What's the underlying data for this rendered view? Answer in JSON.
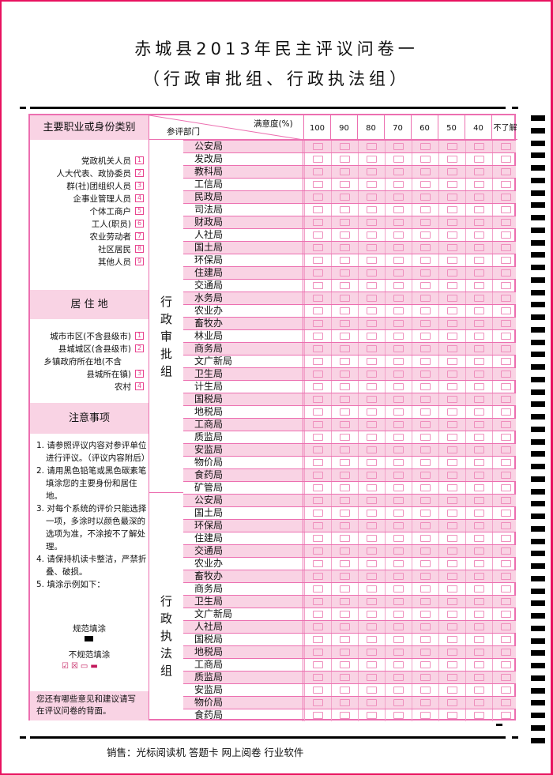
{
  "title": "赤城县2013年民主评议问卷一",
  "subtitle": "（行政审批组、行政执法组）",
  "occupation": {
    "heading": "主要职业或身份类别",
    "items": [
      {
        "label": "党政机关人员",
        "code": "1"
      },
      {
        "label": "人大代表、政协委员",
        "code": "2"
      },
      {
        "label": "群(社)团组织人员",
        "code": "3"
      },
      {
        "label": "企事业管理人员",
        "code": "4"
      },
      {
        "label": "个体工商户",
        "code": "5"
      },
      {
        "label": "工人(职员)",
        "code": "6"
      },
      {
        "label": "农业劳动者",
        "code": "7"
      },
      {
        "label": "社区居民",
        "code": "8"
      },
      {
        "label": "其他人员",
        "code": "9"
      }
    ]
  },
  "residence": {
    "heading": "居 住 地",
    "items": [
      {
        "label": "城市市区(不含县级市)",
        "code": "1"
      },
      {
        "label": "县城城区(含县级市)",
        "code": "2"
      },
      {
        "label": "乡镇政府所在地(不含",
        "code": ""
      },
      {
        "label": "县城所在镇)",
        "code": "3"
      },
      {
        "label": "农村",
        "code": "4"
      }
    ]
  },
  "notes": {
    "heading": "注意事项",
    "items": [
      "1. 请参照评议内容对参评单位进行评议。（评议内容附后）",
      "2. 请用黑色铅笔或黑色碳素笔填涂您的主要身份和居住地。",
      "3. 对每个系统的评价只能选择一项，多涂时以颜色最深的选项为准，不涂按不了解处理。",
      "4. 请保持机读卡整洁，严禁折叠、破损。",
      "5. 填涂示例如下："
    ],
    "correct_label": "规范填涂",
    "incorrect_label": "不规范填涂",
    "back_note": "您还有哪些意见和建议请写在评议问卷的背面。"
  },
  "table": {
    "corner_top": "满意度(%)",
    "corner_bottom": "参评部门",
    "columns": [
      "100",
      "90",
      "80",
      "70",
      "60",
      "50",
      "40",
      "不了解"
    ],
    "groups": [
      {
        "name": "行政审批组",
        "departments": [
          "公安局",
          "发改局",
          "教科局",
          "工信局",
          "民政局",
          "司法局",
          "财政局",
          "人社局",
          "国土局",
          "环保局",
          "住建局",
          "交通局",
          "水务局",
          "农业办",
          "畜牧办",
          "林业局",
          "商务局",
          "文广新局",
          "卫生局",
          "计生局",
          "国税局",
          "地税局",
          "工商局",
          "质监局",
          "安监局",
          "物价局",
          "食药局",
          "矿管局"
        ]
      },
      {
        "name": "行政执法组",
        "departments": [
          "公安局",
          "国土局",
          "环保局",
          "住建局",
          "交通局",
          "农业办",
          "畜牧办",
          "商务局",
          "卫生局",
          "文广新局",
          "人社局",
          "国税局",
          "地税局",
          "工商局",
          "质监局",
          "安监局",
          "物价局",
          "食药局"
        ]
      }
    ]
  },
  "footer": "销售：光标阅读机 答题卡 网上阅卷 行业软件",
  "colors": {
    "border": "#e8125f",
    "accent_pink": "#f9d3e4",
    "line_pink": "#ec6fb0"
  }
}
